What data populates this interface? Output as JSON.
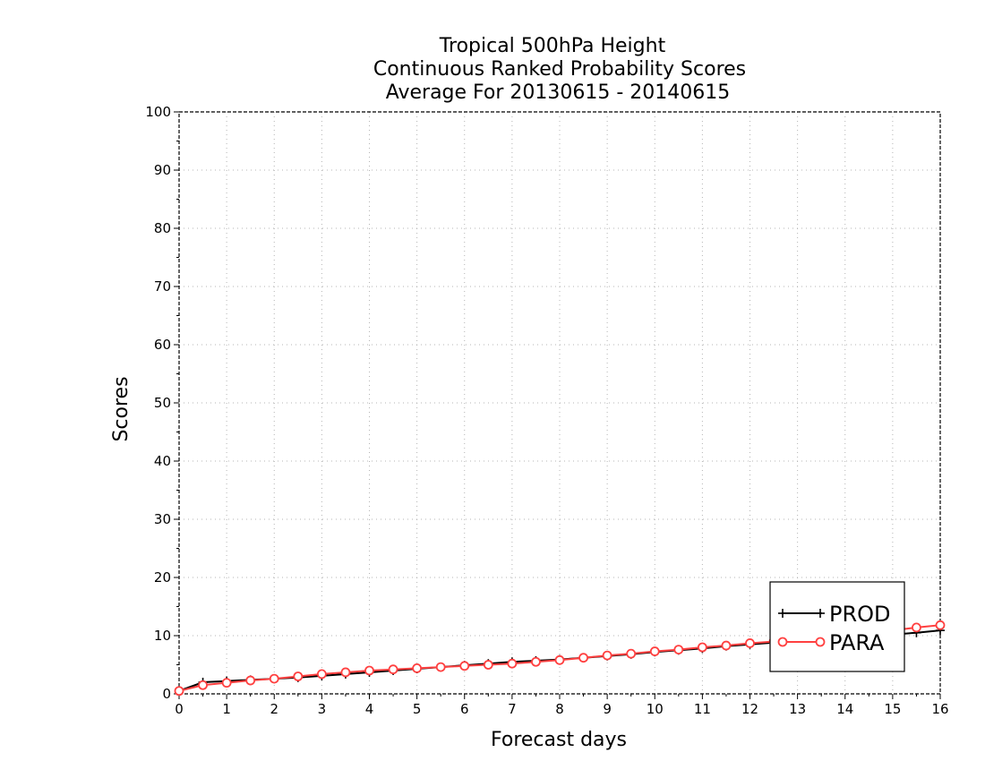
{
  "chart_data": {
    "type": "line",
    "title": [
      "Tropical 500hPa Height",
      "Continuous Ranked Probability Scores",
      "Average For 20130615 - 20140615"
    ],
    "xlabel": "Forecast days",
    "ylabel": "Scores",
    "xlim": [
      0,
      16
    ],
    "ylim": [
      0,
      100
    ],
    "xticks": [
      "0",
      "1",
      "2",
      "3",
      "4",
      "5",
      "6",
      "7",
      "8",
      "9",
      "10",
      "11",
      "12",
      "13",
      "14",
      "15",
      "16"
    ],
    "yticks": [
      "0",
      "10",
      "20",
      "30",
      "40",
      "50",
      "60",
      "70",
      "80",
      "90",
      "100"
    ],
    "grid": true,
    "legend_position": "bottom-right",
    "x": [
      0,
      0.5,
      1,
      1.5,
      2,
      2.5,
      3,
      3.5,
      4,
      4.5,
      5,
      5.5,
      6,
      6.5,
      7,
      7.5,
      8,
      8.5,
      9,
      9.5,
      10,
      10.5,
      11,
      11.5,
      12,
      12.5,
      13,
      13.5,
      14,
      14.5,
      15,
      15.5,
      16
    ],
    "series": [
      {
        "name": "PROD",
        "color": "#000000",
        "marker": "plus",
        "values": [
          0.5,
          2.0,
          2.2,
          2.4,
          2.6,
          2.8,
          3.1,
          3.4,
          3.7,
          4.0,
          4.3,
          4.6,
          4.9,
          5.2,
          5.5,
          5.7,
          5.9,
          6.2,
          6.5,
          6.8,
          7.2,
          7.5,
          7.8,
          8.2,
          8.5,
          8.8,
          9.0,
          9.3,
          9.6,
          9.9,
          10.2,
          10.5,
          10.9
        ]
      },
      {
        "name": "PARA",
        "color": "#ff4040",
        "marker": "circle",
        "values": [
          0.5,
          1.5,
          1.9,
          2.3,
          2.6,
          3.0,
          3.4,
          3.7,
          4.0,
          4.2,
          4.4,
          4.6,
          4.8,
          5.0,
          5.2,
          5.5,
          5.8,
          6.2,
          6.6,
          6.9,
          7.3,
          7.6,
          8.0,
          8.3,
          8.7,
          9.0,
          9.3,
          9.6,
          10.0,
          10.4,
          10.9,
          11.4,
          11.8
        ]
      }
    ]
  }
}
